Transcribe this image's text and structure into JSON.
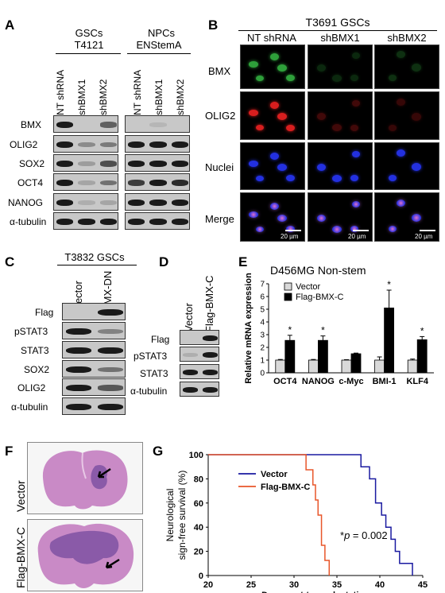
{
  "panelA": {
    "label": "A",
    "group1_line1": "GSCs",
    "group1_line2": "T4121",
    "group2_line1": "NPCs",
    "group2_line2": "ENStemA",
    "lanes": [
      "NT shRNA",
      "shBMX1",
      "shBMX2",
      "NT shRNA",
      "shBMX1",
      "shBMX2"
    ],
    "rows": [
      "BMX",
      "OLIG2",
      "SOX2",
      "OCT4",
      "NANOG",
      "α-tubulin"
    ]
  },
  "panelB": {
    "label": "B",
    "title": "T3691 GSCs",
    "cols": [
      "NT shRNA",
      "shBMX1",
      "shBMX2"
    ],
    "rows": [
      "BMX",
      "OLIG2",
      "Nuclei",
      "Merge"
    ],
    "scale": "20 µm"
  },
  "panelC": {
    "label": "C",
    "title": "T3832 GSCs",
    "lanes": [
      "Vector",
      "BMX-DN"
    ],
    "rows": [
      "Flag",
      "pSTAT3",
      "STAT3",
      "SOX2",
      "OLIG2",
      "α-tubulin"
    ]
  },
  "panelD": {
    "label": "D",
    "lanes": [
      "Vector",
      "Flag-BMX-C"
    ],
    "rows": [
      "Flag",
      "pSTAT3",
      "STAT3",
      "α-tubulin"
    ]
  },
  "panelE": {
    "label": "E",
    "title": "D456MG Non-stem",
    "star": "*"
  },
  "panelF": {
    "label": "F",
    "rows": [
      "Vector",
      "Flag-BMX-C"
    ]
  },
  "panelG": {
    "label": "G",
    "pvalue_star": "*",
    "pvalue_p": "p",
    "pvalue_rest": " = 0.002"
  },
  "colors": {
    "vector_bar": "#d9d9d9",
    "flag_bar": "#000000",
    "vector_line": "#1a1aa0",
    "flag_line": "#e8562a",
    "green": "#2ea03a",
    "red": "#d81e1e",
    "blue": "#2330e0",
    "tissue": "#c980c6"
  },
  "chart_data": [
    {
      "type": "bar",
      "title": "D456MG Non-stem",
      "categories": [
        "OCT4",
        "NANOG",
        "c-Myc",
        "BMI-1",
        "KLF4"
      ],
      "ylabel": "Relative mRNA expression",
      "ylim": [
        0,
        7
      ],
      "yticks": [
        0,
        1,
        2,
        3,
        4,
        5,
        6,
        7
      ],
      "legend_position": "top-left",
      "series": [
        {
          "name": "Vector",
          "values": [
            1.0,
            1.0,
            1.0,
            1.0,
            1.0
          ],
          "errors": [
            0.05,
            0.05,
            0.03,
            0.25,
            0.08
          ]
        },
        {
          "name": "Flag-BMX-C",
          "values": [
            2.55,
            2.55,
            1.5,
            5.1,
            2.6
          ],
          "errors": [
            0.4,
            0.35,
            0.05,
            1.4,
            0.25
          ]
        }
      ],
      "significant": [
        true,
        true,
        false,
        true,
        true
      ]
    },
    {
      "type": "line",
      "xlabel": "Days post-transplantation",
      "ylabel_line1": "Neurological",
      "ylabel_line2": "sign-free survival (%)",
      "xlim": [
        20,
        45
      ],
      "ylim": [
        0,
        100
      ],
      "xticks": [
        20,
        25,
        30,
        35,
        40,
        45
      ],
      "yticks": [
        0,
        20,
        40,
        60,
        80,
        100
      ],
      "legend_position": "top-left",
      "series": [
        {
          "name": "Vector",
          "step": true,
          "x": [
            20,
            37.8,
            37.8,
            38.8,
            38.8,
            39.5,
            39.5,
            40.2,
            40.2,
            40.7,
            40.7,
            41.3,
            41.3,
            41.8,
            41.8,
            42.3,
            42.3,
            43.8,
            43.8
          ],
          "y": [
            100,
            100,
            90,
            90,
            80,
            80,
            60,
            60,
            50,
            50,
            40,
            40,
            30,
            30,
            20,
            20,
            10,
            10,
            0
          ]
        },
        {
          "name": "Flag-BMX-C",
          "step": true,
          "x": [
            20,
            31.4,
            31.4,
            32.2,
            32.2,
            32.5,
            32.5,
            32.8,
            32.8,
            33.2,
            33.2,
            33.6,
            33.6,
            34.1,
            34.1
          ],
          "y": [
            100,
            100,
            87.5,
            87.5,
            75,
            75,
            62.5,
            62.5,
            50,
            50,
            25,
            25,
            12.5,
            12.5,
            0
          ]
        }
      ]
    }
  ]
}
